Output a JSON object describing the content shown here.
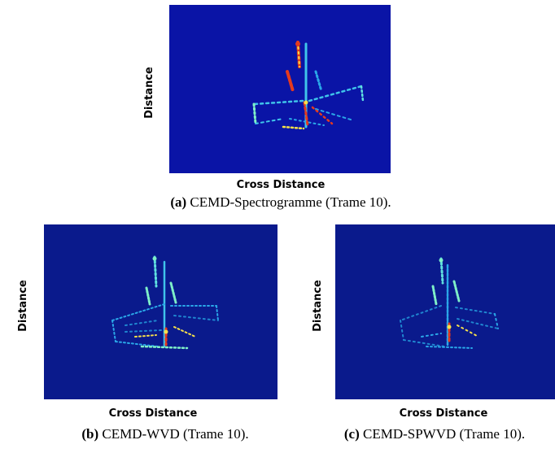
{
  "figures": [
    {
      "id": "a",
      "ylabel": "Distance",
      "xlabel": "Cross Distance",
      "caption_tag": "(a)",
      "caption_text": "CEMD-Spectrogramme (Trame 10)."
    },
    {
      "id": "b",
      "ylabel": "Distance",
      "xlabel": "Cross Distance",
      "caption_tag": "(b)",
      "caption_text": "CEMD-WVD (Trame 10)."
    },
    {
      "id": "c",
      "ylabel": "Distance",
      "xlabel": "Cross Distance",
      "caption_tag": "(c)",
      "caption_text": "CEMD-SPWVD (Trame 10)."
    }
  ],
  "colors": {
    "background_a": "#0a14a6",
    "background_b": "#0a1a8c",
    "background_c": "#0a1a8c",
    "scatter_low": "#2aa7e8",
    "scatter_mid": "#7ff0c8",
    "scatter_high": "#f5e04a",
    "scatter_peak": "#e53a1e"
  }
}
